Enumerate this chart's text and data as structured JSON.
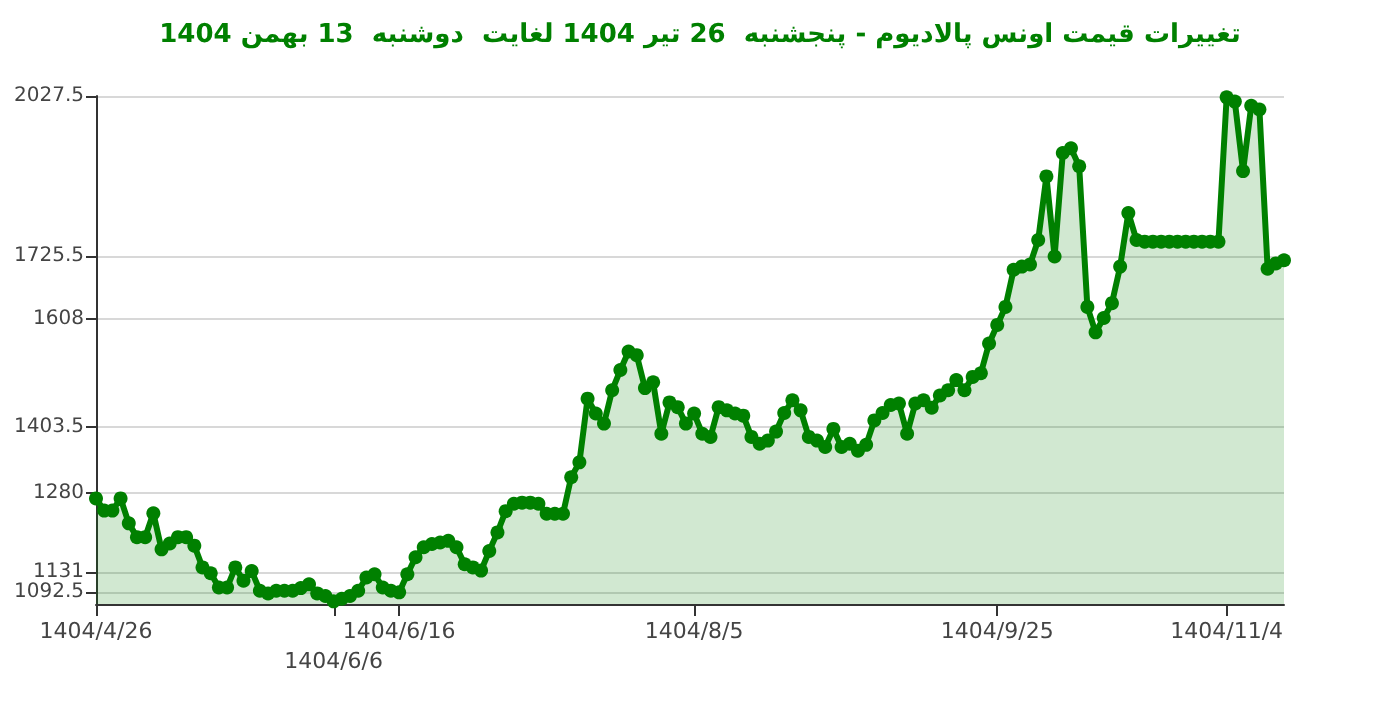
{
  "chart_data": {
    "type": "area",
    "title": "تغییرات قیمت اونس پالادیوم - پنجشنبه  26 تیر 1404 لغایت  دوشنبه  13 بهمن 1404",
    "categories": [
      "1404/4/26",
      null,
      null,
      null,
      null,
      null,
      null,
      null,
      null,
      null,
      null,
      null,
      null,
      null,
      null,
      null,
      null,
      null,
      null,
      null,
      null,
      null,
      null,
      null,
      null,
      null,
      null,
      null,
      null,
      "1404/6/6",
      null,
      null,
      null,
      null,
      null,
      null,
      null,
      "1404/6/16",
      null,
      null,
      null,
      null,
      null,
      null,
      null,
      null,
      null,
      null,
      null,
      null,
      null,
      null,
      null,
      null,
      null,
      null,
      null,
      null,
      null,
      null,
      null,
      null,
      null,
      null,
      null,
      null,
      null,
      null,
      null,
      null,
      null,
      null,
      null,
      "1404/8/5",
      null,
      null,
      null,
      null,
      null,
      null,
      null,
      null,
      null,
      null,
      null,
      null,
      null,
      null,
      null,
      null,
      null,
      null,
      null,
      null,
      null,
      null,
      null,
      null,
      null,
      null,
      null,
      null,
      null,
      null,
      null,
      null,
      null,
      null,
      null,
      null,
      "1404/9/25",
      null,
      null,
      null,
      null,
      null,
      null,
      null,
      null,
      null,
      null,
      null,
      null,
      null,
      null,
      null,
      null,
      null,
      null,
      null,
      null,
      null,
      null,
      null,
      null,
      null,
      null,
      null,
      "1404/11/4",
      null,
      null,
      null,
      null,
      null,
      null,
      null
    ],
    "series": [
      {
        "color": "#008000",
        "values": [
          1269,
          1246,
          1246,
          1269,
          1222,
          1196,
          1196,
          1241,
          1173,
          1184,
          1196,
          1196,
          1180,
          1139,
          1128,
          1101,
          1101,
          1139,
          1114,
          1132,
          1095,
          1090,
          1095,
          1095,
          1095,
          1100,
          1107,
          1090,
          1085,
          1075,
          1080,
          1085,
          1095,
          1120,
          1126,
          1101,
          1095,
          1092,
          1126,
          1158,
          1177,
          1183,
          1186,
          1189,
          1177,
          1145,
          1139,
          1133,
          1170,
          1205,
          1245,
          1259,
          1261,
          1261,
          1259,
          1240,
          1240,
          1240,
          1309,
          1337,
          1457,
          1429,
          1410,
          1473,
          1511,
          1546,
          1539,
          1477,
          1488,
          1391,
          1450,
          1441,
          1410,
          1429,
          1391,
          1385,
          1441,
          1435,
          1429,
          1425,
          1385,
          1372,
          1378,
          1395,
          1430,
          1454,
          1435,
          1385,
          1378,
          1366,
          1400,
          1366,
          1372,
          1359,
          1370,
          1416,
          1430,
          1445,
          1448,
          1391,
          1448,
          1454,
          1440,
          1463,
          1473,
          1492,
          1473,
          1498,
          1505,
          1561,
          1596,
          1630,
          1700,
          1706,
          1710,
          1756,
          1876,
          1725,
          1920,
          1929,
          1895,
          1630,
          1582,
          1609,
          1637,
          1706,
          1807,
          1756,
          1753,
          1753,
          1753,
          1753,
          1753,
          1753,
          1753,
          1753,
          1753,
          1753,
          2025,
          2017,
          1886,
          2009,
          2002,
          1702,
          1712,
          1718
        ]
      }
    ],
    "ylim": [
      1070,
      2027.5
    ],
    "yticks": [
      1092.5,
      1131,
      1280,
      1403.5,
      1608,
      1725.5,
      2027.5
    ],
    "grid": "y",
    "marker": "circle",
    "line_style": "solid"
  }
}
